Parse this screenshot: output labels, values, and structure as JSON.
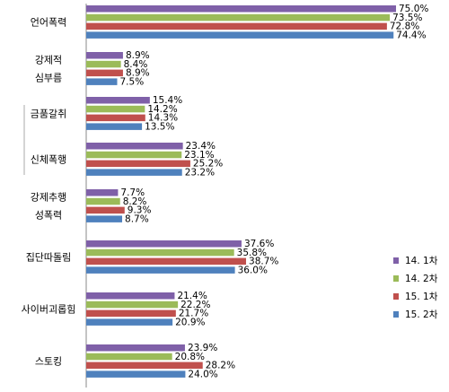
{
  "chart_data": {
    "type": "bar",
    "orientation": "horizontal",
    "categories": [
      [
        "언어폭력"
      ],
      [
        "강제적",
        "심부름"
      ],
      [
        "금품갈취"
      ],
      [
        "신체폭행"
      ],
      [
        "강제추행",
        "성폭력"
      ],
      [
        "집단따돌림"
      ],
      [
        "사이버괴롭힘"
      ],
      [
        "스토킹"
      ]
    ],
    "series": [
      {
        "name": "14. 1차",
        "color": "#7f60a8",
        "values": [
          75.0,
          8.9,
          15.4,
          23.4,
          7.7,
          37.6,
          21.4,
          23.9
        ]
      },
      {
        "name": "14. 2차",
        "color": "#9bbb59",
        "values": [
          73.5,
          8.4,
          14.2,
          23.1,
          8.2,
          35.8,
          22.2,
          20.8
        ]
      },
      {
        "name": "15. 1차",
        "color": "#c0504d",
        "values": [
          72.8,
          8.9,
          14.3,
          25.2,
          9.3,
          38.7,
          21.7,
          28.2
        ]
      },
      {
        "name": "15. 2차",
        "color": "#4f81bd",
        "values": [
          74.4,
          7.5,
          13.5,
          23.2,
          8.7,
          36.0,
          20.9,
          24.0
        ]
      }
    ],
    "value_labels": [
      [
        "75.0%",
        "8.9%",
        "15.4%",
        "23.4%",
        "7.7%",
        "37.6%",
        "21.4%",
        "23.9%"
      ],
      [
        "73.5%",
        "8.4%",
        "14.2%",
        "23.1%",
        "8.2%",
        "35.8%",
        "22.2%",
        "20.8%"
      ],
      [
        "72.8%",
        "8.9%",
        "14.3%",
        "25.2%",
        "9.3%",
        "38.7%",
        "21.7%",
        "28.2%"
      ],
      [
        "74.4%",
        "7.5%",
        "13.5%",
        "23.2%",
        "8.7%",
        "36.0%",
        "20.9%",
        "24.0%"
      ]
    ],
    "xlim": [
      0,
      80
    ],
    "grid": false,
    "legend_position": "right"
  }
}
